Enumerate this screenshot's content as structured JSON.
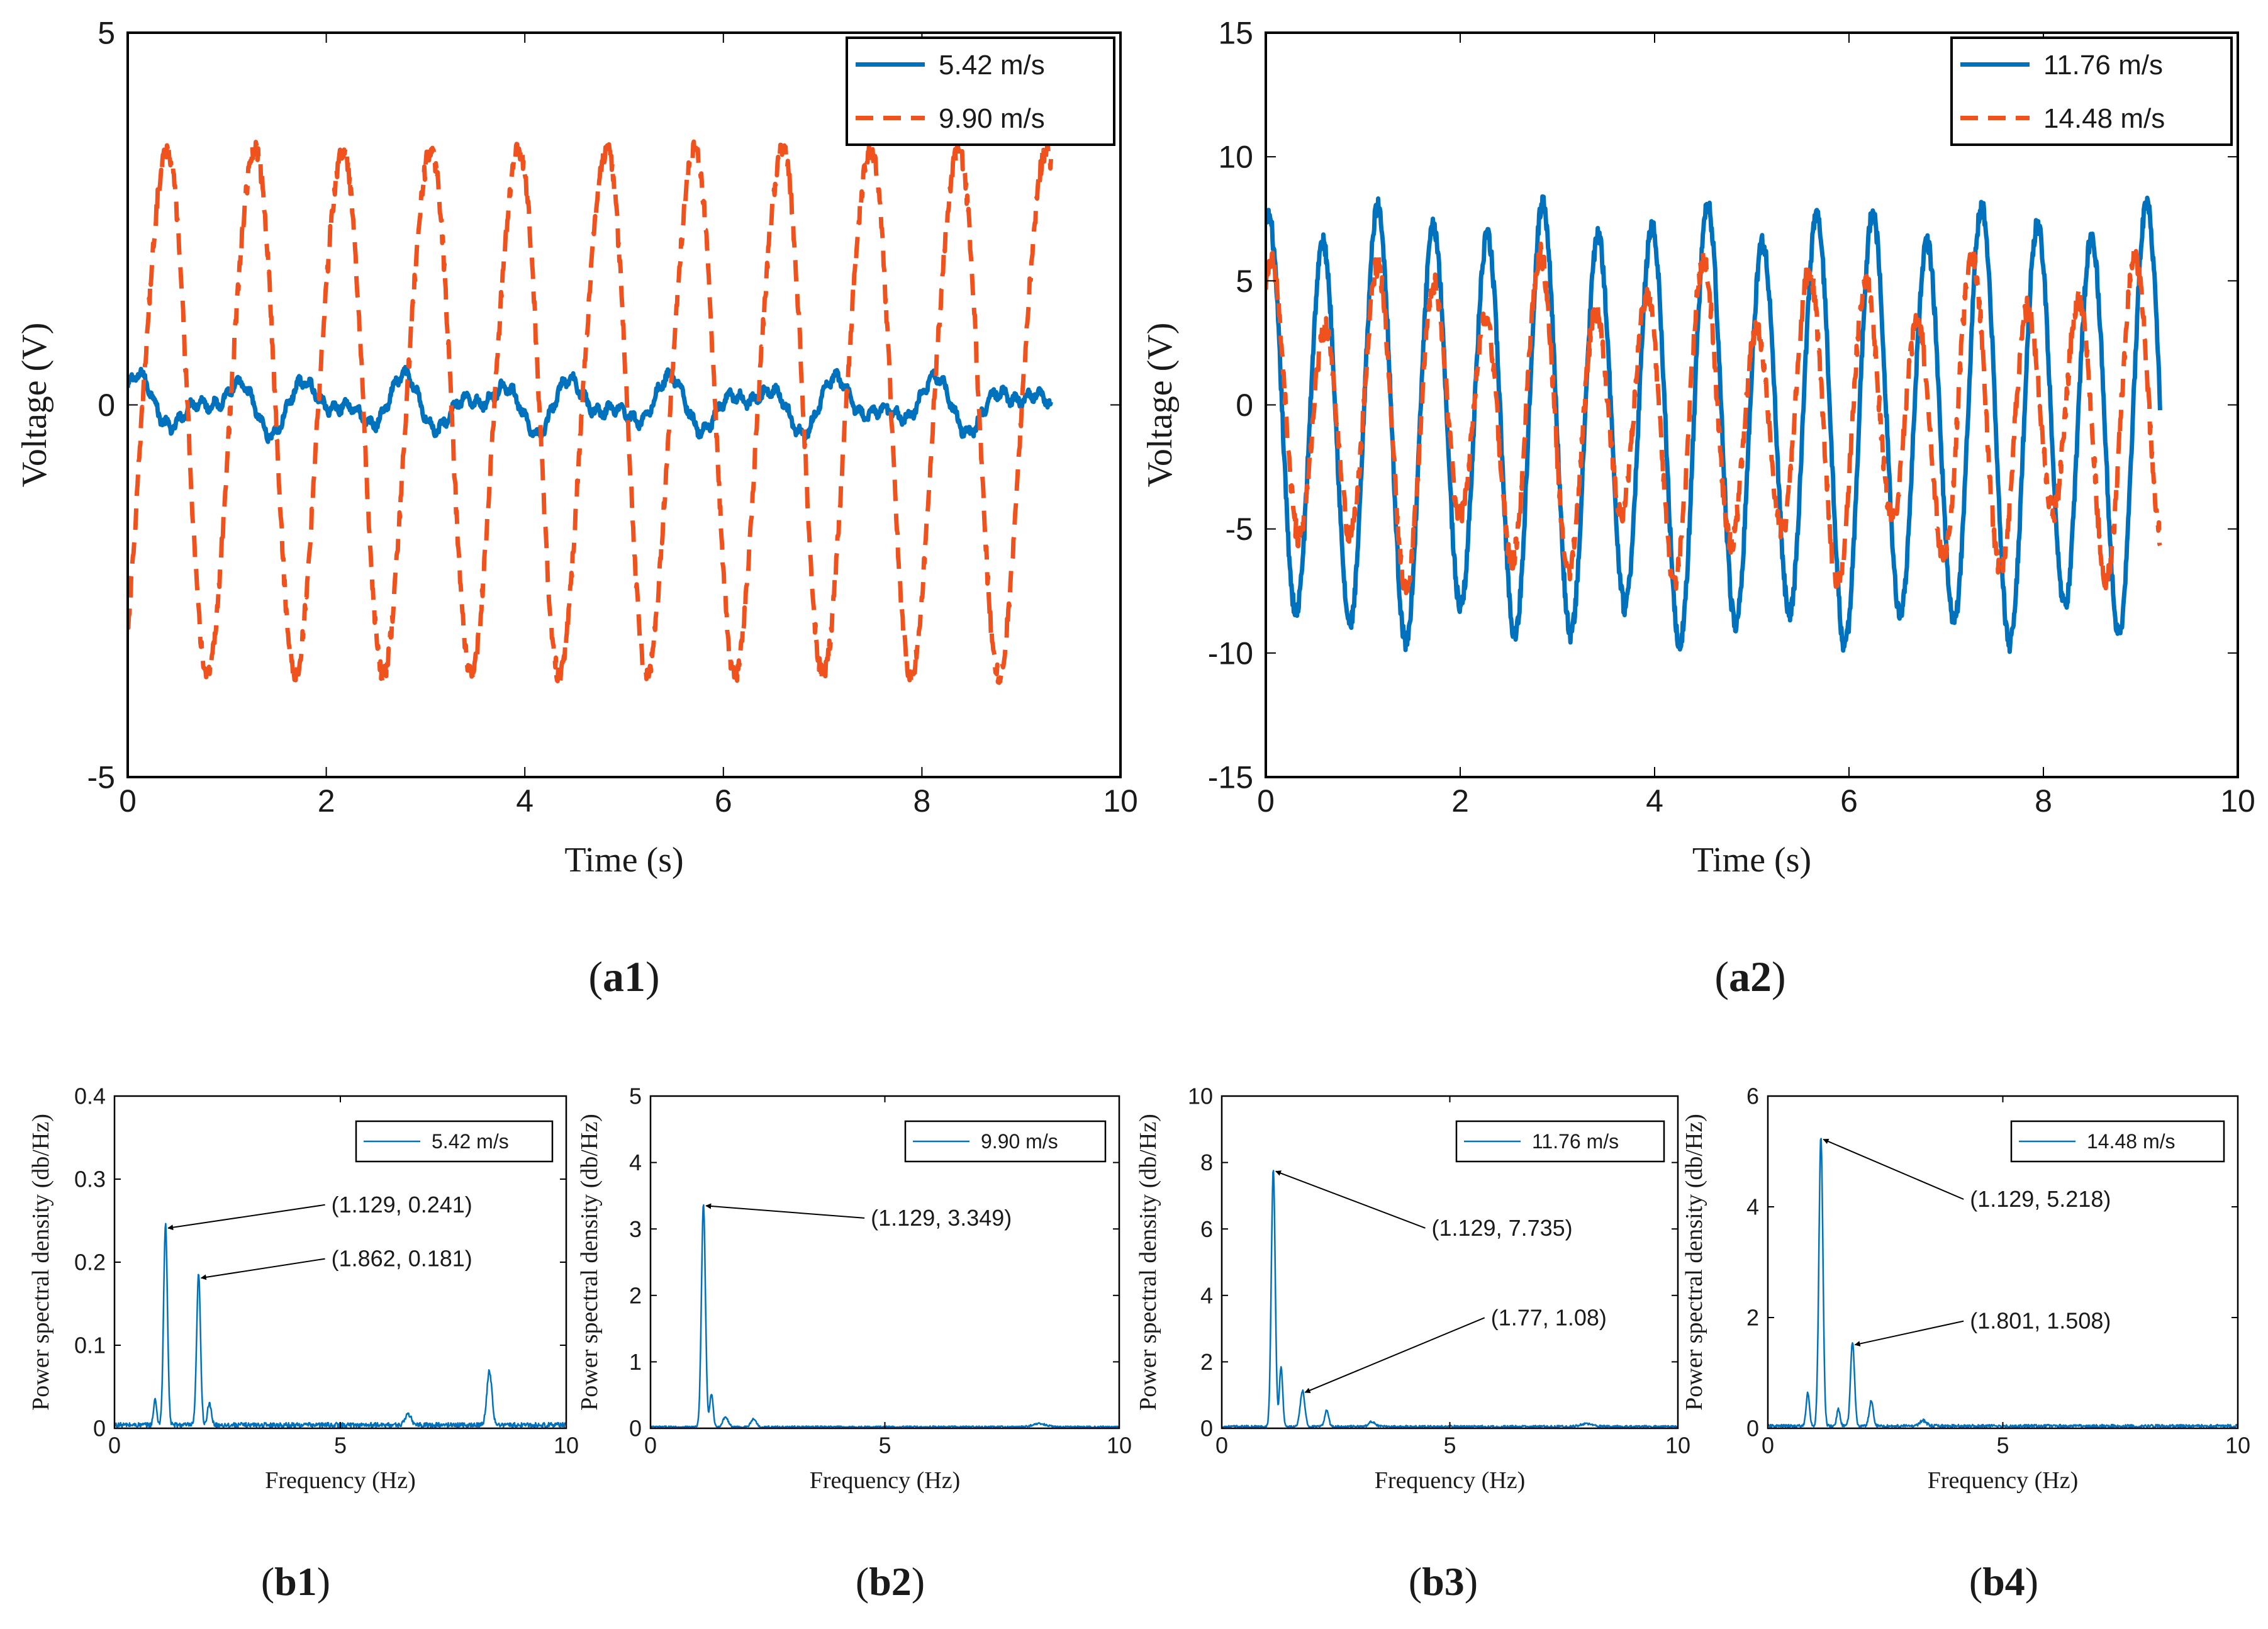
{
  "colors": {
    "blue": "#0072BD",
    "orange": "#F0521E",
    "axis": "#000000",
    "text": "#1a1a1a"
  },
  "chart_data": [
    {
      "id": "a1",
      "type": "line",
      "panel_label": "a1",
      "xlabel": "Time (s)",
      "ylabel": "Voltage (V)",
      "xlim": [
        0,
        10
      ],
      "ylim": [
        -5,
        5
      ],
      "xticks": [
        0,
        2,
        4,
        6,
        8,
        10
      ],
      "xtick_labels": [
        "0",
        "2",
        "4",
        "6",
        "8",
        "10"
      ],
      "yticks": [
        -5,
        0,
        5
      ],
      "ytick_labels": [
        "-5",
        "0",
        "5"
      ],
      "legend_position": "top-right",
      "series": [
        {
          "name": "5.42 m/s",
          "style": "solid",
          "color": "#0072BD",
          "t_end": 9.3,
          "components": [
            {
              "amp": 0.23,
              "freq": 1.129,
              "phase": 0.8
            },
            {
              "amp": 0.18,
              "freq": 1.862,
              "phase": 0.3
            },
            {
              "amp": 0.06,
              "freq": 8.3,
              "phase": 0.0
            }
          ],
          "offset": 0.0,
          "noise": 0.05
        },
        {
          "name": "9.90 m/s",
          "style": "dashed",
          "color": "#F0521E",
          "t_end": 9.3,
          "components": [
            {
              "amp": 3.5,
              "freq": 1.129,
              "phase": -1.1
            },
            {
              "amp": 0.25,
              "freq": 2.258,
              "phase": 0.5
            }
          ],
          "offset": 0.0,
          "noise": 0.12
        }
      ]
    },
    {
      "id": "a2",
      "type": "line",
      "panel_label": "a2",
      "xlabel": "Time (s)",
      "ylabel": "Voltage (V)",
      "xlim": [
        0,
        10
      ],
      "ylim": [
        -15,
        15
      ],
      "xticks": [
        0,
        2,
        4,
        6,
        8,
        10
      ],
      "xtick_labels": [
        "0",
        "2",
        "4",
        "6",
        "8",
        "10"
      ],
      "yticks": [
        -15,
        -10,
        -5,
        0,
        5,
        10,
        15
      ],
      "ytick_labels": [
        "-15",
        "-10",
        "-5",
        "0",
        "5",
        "10",
        "15"
      ],
      "legend_position": "top-right",
      "series": [
        {
          "name": "11.76 m/s",
          "style": "solid",
          "color": "#0072BD",
          "t_end": 9.2,
          "components": [
            {
              "amp": 8.1,
              "freq": 1.77,
              "phase": 1.3
            },
            {
              "amp": 0.8,
              "freq": 1.129,
              "phase": 0.2
            }
          ],
          "offset": -0.8,
          "noise": 0.35
        },
        {
          "name": "14.48 m/s",
          "style": "dashed",
          "color": "#F0521E",
          "t_end": 9.2,
          "components": [
            {
              "amp": 5.2,
              "freq": 1.801,
              "phase": 1.0
            },
            {
              "amp": 1.5,
              "freq": 1.129,
              "phase": 0.5
            }
          ],
          "offset": -0.6,
          "noise": 0.45
        }
      ]
    },
    {
      "id": "b1",
      "type": "line",
      "panel_label": "b1",
      "xlabel": "Frequency (Hz)",
      "ylabel": "Power spectral density (db/Hz)",
      "xlim": [
        0,
        10
      ],
      "ylim": [
        0,
        0.4
      ],
      "xticks": [
        0,
        5,
        10
      ],
      "xtick_labels": [
        "0",
        "5",
        "10"
      ],
      "yticks": [
        0,
        0.1,
        0.2,
        0.3,
        0.4
      ],
      "ytick_labels": [
        "0",
        "0.1",
        "0.2",
        "0.3",
        "0.4"
      ],
      "legend_position": "top-right",
      "series": [
        {
          "name": "5.42 m/s",
          "color": "#0072BD",
          "baseline": 0.004,
          "peaks": [
            {
              "f": 1.129,
              "v": 0.241,
              "w": 0.06
            },
            {
              "f": 1.862,
              "v": 0.181,
              "w": 0.06
            },
            {
              "f": 8.3,
              "v": 0.065,
              "w": 0.08
            },
            {
              "f": 0.9,
              "v": 0.03,
              "w": 0.05
            },
            {
              "f": 2.1,
              "v": 0.025,
              "w": 0.06
            },
            {
              "f": 6.5,
              "v": 0.012,
              "w": 0.1
            }
          ]
        }
      ],
      "annotations": [
        {
          "text": "(1.129, 0.241)",
          "x": 1.129,
          "y": 0.241,
          "tx": 4.8,
          "ty": 0.26
        },
        {
          "text": "(1.862, 0.181)",
          "x": 1.862,
          "y": 0.181,
          "tx": 4.8,
          "ty": 0.195
        }
      ]
    },
    {
      "id": "b2",
      "type": "line",
      "panel_label": "b2",
      "xlabel": "Frequency (Hz)",
      "ylabel": "Power spectral density (db/Hz)",
      "xlim": [
        0,
        10
      ],
      "ylim": [
        0,
        5
      ],
      "xticks": [
        0,
        5,
        10
      ],
      "xtick_labels": [
        "0",
        "5",
        "10"
      ],
      "yticks": [
        0,
        1,
        2,
        3,
        4,
        5
      ],
      "ytick_labels": [
        "0",
        "1",
        "2",
        "3",
        "4",
        "5"
      ],
      "legend_position": "top-right",
      "series": [
        {
          "name": "9.90 m/s",
          "color": "#0072BD",
          "baseline": 0.02,
          "peaks": [
            {
              "f": 1.129,
              "v": 3.349,
              "w": 0.06
            },
            {
              "f": 1.3,
              "v": 0.5,
              "w": 0.05
            },
            {
              "f": 1.6,
              "v": 0.15,
              "w": 0.08
            },
            {
              "f": 2.2,
              "v": 0.12,
              "w": 0.08
            },
            {
              "f": 8.3,
              "v": 0.05,
              "w": 0.2
            }
          ]
        }
      ],
      "annotations": [
        {
          "text": "(1.129, 3.349)",
          "x": 1.129,
          "y": 3.349,
          "tx": 4.7,
          "ty": 3.05
        }
      ]
    },
    {
      "id": "b3",
      "type": "line",
      "panel_label": "b3",
      "xlabel": "Frequency (Hz)",
      "ylabel": "Power spectral density (db/Hz)",
      "xlim": [
        0,
        10
      ],
      "ylim": [
        0,
        10
      ],
      "xticks": [
        0,
        5,
        10
      ],
      "xtick_labels": [
        "0",
        "5",
        "10"
      ],
      "yticks": [
        0,
        2,
        4,
        6,
        8,
        10
      ],
      "ytick_labels": [
        "0",
        "2",
        "4",
        "6",
        "8",
        "10"
      ],
      "legend_position": "top-right",
      "series": [
        {
          "name": "11.76 m/s",
          "color": "#0072BD",
          "baseline": 0.05,
          "peaks": [
            {
              "f": 1.129,
              "v": 7.735,
              "w": 0.06
            },
            {
              "f": 1.3,
              "v": 1.8,
              "w": 0.05
            },
            {
              "f": 1.77,
              "v": 1.08,
              "w": 0.07
            },
            {
              "f": 2.3,
              "v": 0.5,
              "w": 0.06
            },
            {
              "f": 3.3,
              "v": 0.15,
              "w": 0.1
            },
            {
              "f": 8.0,
              "v": 0.08,
              "w": 0.2
            }
          ]
        }
      ],
      "annotations": [
        {
          "text": "(1.129, 7.735)",
          "x": 1.129,
          "y": 7.735,
          "tx": 4.6,
          "ty": 5.8
        },
        {
          "text": "(1.77, 1.08)",
          "x": 1.77,
          "y": 1.08,
          "tx": 5.9,
          "ty": 3.1
        }
      ]
    },
    {
      "id": "b4",
      "type": "line",
      "panel_label": "b4",
      "xlabel": "Frequency (Hz)",
      "ylabel": "Power spectral density (db/Hz)",
      "xlim": [
        0,
        10
      ],
      "ylim": [
        0,
        6
      ],
      "xticks": [
        0,
        5,
        10
      ],
      "xtick_labels": [
        "0",
        "5",
        "10"
      ],
      "yticks": [
        0,
        2,
        4,
        6
      ],
      "ytick_labels": [
        "0",
        "2",
        "4",
        "6"
      ],
      "legend_position": "top-right",
      "series": [
        {
          "name": "14.48 m/s",
          "color": "#0072BD",
          "baseline": 0.04,
          "peaks": [
            {
              "f": 1.129,
              "v": 5.218,
              "w": 0.06
            },
            {
              "f": 0.85,
              "v": 0.6,
              "w": 0.05
            },
            {
              "f": 1.801,
              "v": 1.508,
              "w": 0.06
            },
            {
              "f": 2.2,
              "v": 0.45,
              "w": 0.06
            },
            {
              "f": 1.5,
              "v": 0.3,
              "w": 0.05
            },
            {
              "f": 3.3,
              "v": 0.1,
              "w": 0.1
            }
          ]
        }
      ],
      "annotations": [
        {
          "text": "(1.129, 5.218)",
          "x": 1.129,
          "y": 5.218,
          "tx": 4.3,
          "ty": 4.0
        },
        {
          "text": "(1.801, 1.508)",
          "x": 1.801,
          "y": 1.508,
          "tx": 4.3,
          "ty": 1.8
        }
      ]
    }
  ]
}
